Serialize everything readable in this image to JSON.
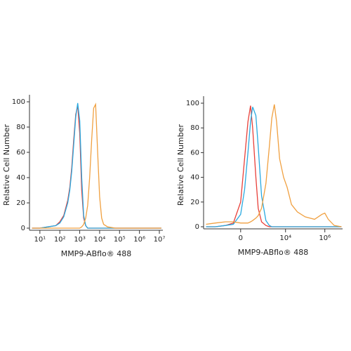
{
  "chart_data": [
    {
      "type": "line",
      "x_label": "MMP9-ABflo® 488",
      "y_label": "Relative Cell Number",
      "xscale": "log",
      "x": [
        4,
        10,
        25,
        63,
        100,
        158,
        251,
        316,
        398,
        501,
        631,
        794,
        1000,
        1259,
        1585,
        1995,
        2512,
        3162,
        3981,
        5012,
        6310,
        7943,
        10000,
        12589,
        15849,
        25119,
        63096,
        316228,
        3162278,
        12589254
      ],
      "xlim": [
        3,
        15000000
      ],
      "xticks": [
        {
          "value": 10,
          "label": "10¹"
        },
        {
          "value": 100,
          "label": "10²"
        },
        {
          "value": 1000,
          "label": "10³"
        },
        {
          "value": 10000,
          "label": "10⁴"
        },
        {
          "value": 100000,
          "label": "10⁵"
        },
        {
          "value": 1000000,
          "label": "10⁶"
        },
        {
          "value": 10000000,
          "label": "10⁷"
        }
      ],
      "ylim": [
        0,
        100
      ],
      "yticks": [
        0,
        20,
        40,
        60,
        80,
        100
      ],
      "series": [
        {
          "color": "#e8403a",
          "values": [
            0,
            0,
            1,
            2,
            5,
            10,
            22,
            32,
            48,
            70,
            90,
            97,
            75,
            30,
            8,
            2,
            0,
            0,
            0,
            0,
            0,
            0,
            0,
            0,
            0,
            0,
            0,
            0,
            0,
            0
          ]
        },
        {
          "color": "#29a9e0",
          "values": [
            0,
            0,
            1,
            2,
            4,
            9,
            20,
            30,
            45,
            66,
            88,
            99,
            85,
            40,
            10,
            2,
            0,
            0,
            0,
            0,
            0,
            0,
            0,
            0,
            0,
            0,
            0,
            0,
            0,
            0
          ]
        },
        {
          "color": "#f0a040",
          "values": [
            0,
            0,
            0,
            0,
            0,
            0,
            0,
            0,
            0,
            0,
            0,
            0,
            0,
            1,
            3,
            8,
            18,
            40,
            70,
            95,
            98,
            60,
            25,
            8,
            3,
            1,
            0,
            0,
            0,
            0
          ]
        }
      ]
    },
    {
      "type": "line",
      "x_label": "MMP9-ABflo® 488",
      "y_label": "Relative Cell Number",
      "xscale": "biexponential",
      "x": [
        -3000,
        -1000,
        -300,
        -100,
        0,
        50,
        100,
        150,
        200,
        300,
        400,
        600,
        1000,
        1500,
        2000,
        2700,
        3500,
        5000,
        8000,
        12000,
        20000,
        40000,
        100000,
        300000,
        700000,
        1000000,
        1500000,
        3000000,
        7000000
      ],
      "xlim": [
        -4000,
        8000000
      ],
      "xticks": [
        0,
        {
          "value": 10000,
          "label": "10⁴"
        },
        {
          "value": 1000000,
          "label": "10⁶"
        }
      ],
      "ylim": [
        0,
        100
      ],
      "yticks": [
        0,
        20,
        40,
        60,
        80,
        100
      ],
      "series": [
        {
          "color": "#e8403a",
          "values": [
            0,
            0,
            1,
            3,
            20,
            55,
            85,
            98,
            80,
            40,
            15,
            4,
            1,
            0,
            0,
            0,
            0,
            0,
            0,
            0,
            0,
            0,
            0,
            0,
            0,
            0,
            0,
            0,
            0
          ]
        },
        {
          "color": "#29a9e0",
          "values": [
            0,
            0,
            1,
            2,
            10,
            30,
            60,
            85,
            97,
            90,
            65,
            25,
            5,
            1,
            0,
            0,
            0,
            0,
            0,
            0,
            0,
            0,
            0,
            0,
            0,
            0,
            0,
            0,
            0
          ]
        },
        {
          "color": "#f0a040",
          "values": [
            2,
            3,
            4,
            4,
            3,
            3,
            3,
            4,
            5,
            7,
            9,
            15,
            35,
            65,
            88,
            99,
            85,
            55,
            40,
            32,
            18,
            12,
            8,
            6,
            10,
            11,
            6,
            1,
            0
          ]
        }
      ]
    }
  ]
}
